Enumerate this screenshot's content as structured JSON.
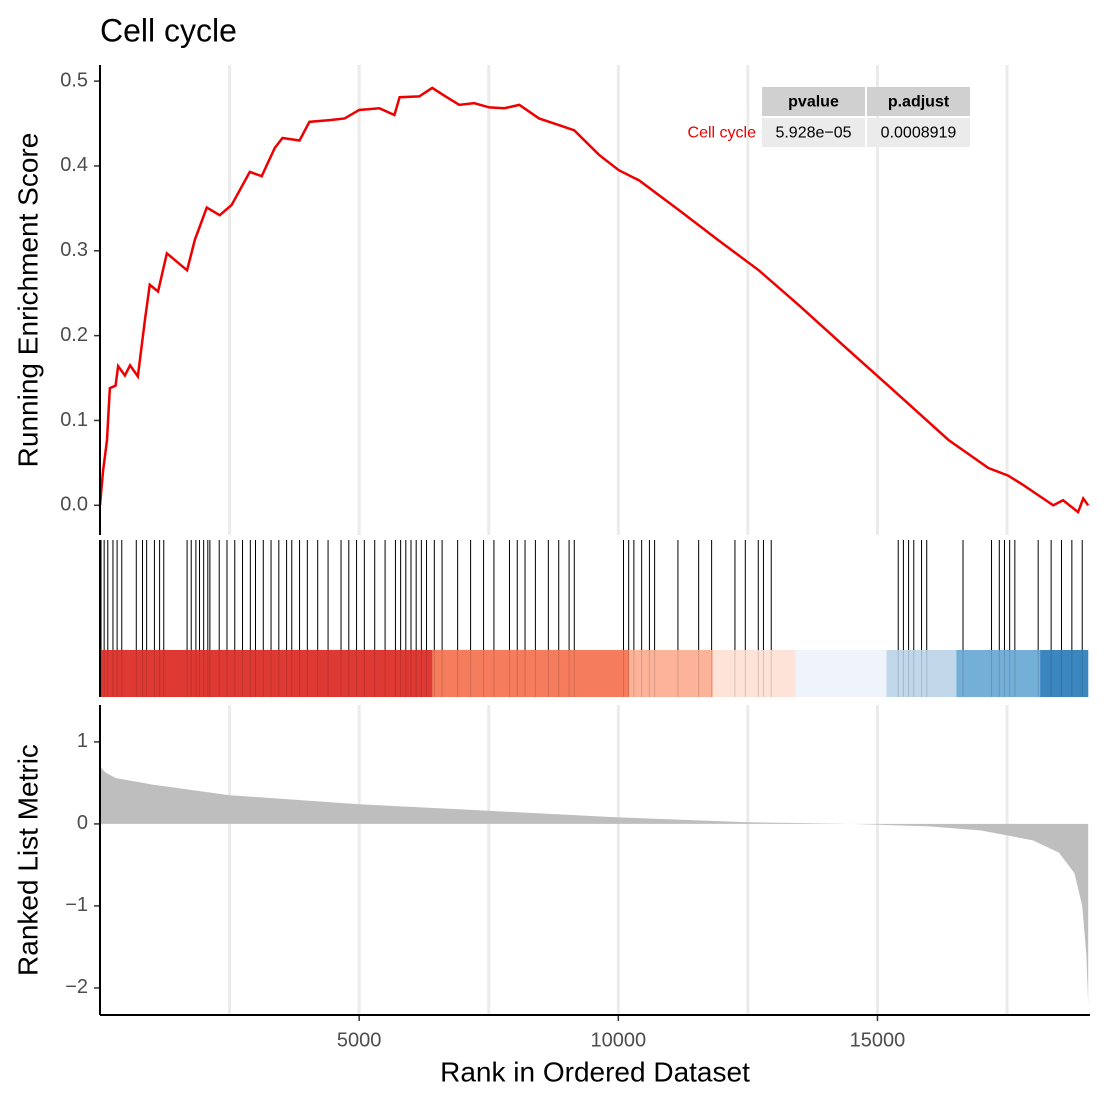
{
  "chart_data": {
    "type": "gsea",
    "title": "Cell cycle",
    "xlabel": "Rank in Ordered Dataset",
    "ylabel": "Running Enrichment Score",
    "ylabel2": "Ranked List Metric",
    "xlim": [
      0,
      19100
    ],
    "xticks": [
      5000,
      10000,
      15000
    ],
    "x_minor": [
      2500,
      7500,
      12500,
      17500
    ],
    "ylim": [
      -0.035,
      0.519
    ],
    "yticks": [
      {
        "value": 0,
        "label": "0.0"
      },
      {
        "value": 0.1,
        "label": "0.1"
      },
      {
        "value": 0.2,
        "label": "0.2"
      },
      {
        "value": 0.3,
        "label": "0.3"
      },
      {
        "value": 0.4,
        "label": "0.4"
      },
      {
        "value": 0.5,
        "label": "0.5"
      }
    ],
    "y2lim": [
      -2.33,
      1.45
    ],
    "y2ticks": [
      {
        "value": 1,
        "label": "1"
      },
      {
        "value": 0,
        "label": "0"
      },
      {
        "value": -1,
        "label": "−1"
      },
      {
        "value": -2,
        "label": "−2"
      }
    ],
    "series": [
      {
        "name": "Cell cycle",
        "color": "#ee0000",
        "x": [
          0,
          58,
          135,
          190,
          300,
          350,
          480,
          580,
          730,
          870,
          960,
          1120,
          1290,
          1680,
          1830,
          2060,
          2310,
          2540,
          2890,
          3120,
          3370,
          3520,
          3850,
          4040,
          4430,
          4720,
          5000,
          5390,
          5680,
          5780,
          6160,
          6410,
          6640,
          6930,
          7220,
          7510,
          7800,
          8090,
          8470,
          8860,
          9150,
          9630,
          10010,
          10400,
          11170,
          11940,
          12710,
          13480,
          14440,
          15410,
          16370,
          17140,
          17520,
          17810,
          18100,
          18390,
          18580,
          18870,
          18970,
          19065
        ],
        "values": [
          0,
          0.04,
          0.077,
          0.138,
          0.141,
          0.164,
          0.153,
          0.165,
          0.152,
          0.22,
          0.26,
          0.252,
          0.297,
          0.277,
          0.313,
          0.351,
          0.342,
          0.354,
          0.393,
          0.388,
          0.421,
          0.433,
          0.43,
          0.452,
          0.454,
          0.456,
          0.466,
          0.468,
          0.46,
          0.481,
          0.482,
          0.492,
          0.483,
          0.472,
          0.474,
          0.469,
          0.468,
          0.472,
          0.456,
          0.448,
          0.442,
          0.413,
          0.395,
          0.383,
          0.348,
          0.312,
          0.277,
          0.236,
          0.183,
          0.13,
          0.077,
          0.044,
          0.035,
          0.024,
          0.012,
          0,
          0.006,
          -0.008,
          0.008,
          0
        ]
      }
    ],
    "hits": [
      20,
      80,
      150,
      250,
      330,
      420,
      700,
      820,
      900,
      1050,
      1150,
      1230,
      1680,
      1760,
      1850,
      1920,
      2000,
      2080,
      2120,
      2300,
      2450,
      2600,
      2750,
      2900,
      3000,
      3150,
      3300,
      3450,
      3600,
      3700,
      3850,
      4000,
      4200,
      4400,
      4650,
      4800,
      4950,
      5100,
      5300,
      5500,
      5700,
      5800,
      5900,
      6000,
      6100,
      6200,
      6300,
      6450,
      6600,
      6900,
      7150,
      7400,
      7600,
      7900,
      8050,
      8200,
      8400,
      8650,
      8850,
      9050,
      9150,
      10100,
      10200,
      10300,
      10450,
      10600,
      10700,
      11150,
      11550,
      11800,
      12250,
      12450,
      12700,
      12800,
      12950,
      15400,
      15500,
      15600,
      15700,
      15850,
      15950,
      16650,
      17200,
      17350,
      17450,
      17550,
      17650,
      18100,
      18350,
      18550,
      18750,
      18950
    ],
    "band_breaks": [
      0,
      6412,
      10206,
      11824,
      13422,
      15174,
      16523,
      18140,
      19065
    ],
    "band_colors": [
      "#df3a34",
      "#f67c5e",
      "#fbb39a",
      "#fde3d8",
      "#eef3fc",
      "#c1d7ea",
      "#74afd8",
      "#3c86c0"
    ],
    "metric": {
      "color": "#bebebe",
      "x": [
        0,
        100,
        300,
        1000,
        2500,
        5000,
        7500,
        10000,
        12500,
        14500,
        16000,
        17000,
        18000,
        18500,
        18800,
        18950,
        19030,
        19065
      ],
      "values": [
        0.7,
        0.63,
        0.56,
        0.48,
        0.35,
        0.24,
        0.16,
        0.08,
        0.02,
        0,
        -0.03,
        -0.08,
        -0.2,
        -0.35,
        -0.6,
        -1.0,
        -1.6,
        -2.2
      ]
    },
    "table": {
      "header": [
        "pvalue",
        "p.adjust"
      ],
      "row_label": "Cell cycle",
      "row": [
        "5.928e−05",
        "0.0008919"
      ]
    }
  }
}
